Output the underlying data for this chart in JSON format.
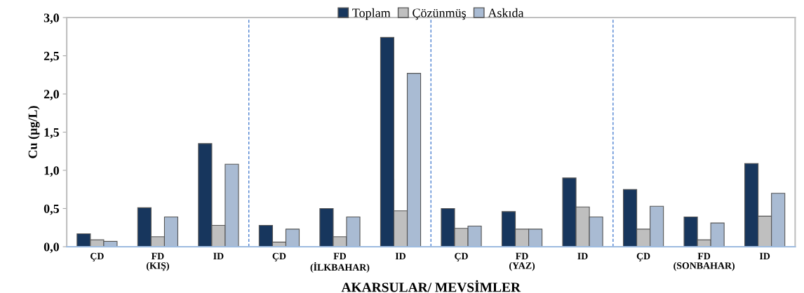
{
  "chart_data": {
    "type": "bar",
    "xlabel": "AKARSULAR/ MEVSİMLER",
    "ylabel": "Cu (µg/L)",
    "categories": [
      "ÇD",
      "FD\n(KIŞ)",
      "ID",
      "ÇD",
      "FD\n(İLKBAHAR)",
      "ID",
      "ÇD",
      "FD\n(YAZ)",
      "ID",
      "ÇD",
      "FD\n(SONBAHAR)",
      "ID"
    ],
    "series": [
      {
        "name": "Toplam",
        "color": "#17365d",
        "values": [
          0.17,
          0.51,
          1.35,
          0.28,
          0.5,
          2.74,
          0.5,
          0.46,
          0.9,
          0.75,
          0.39,
          1.09
        ]
      },
      {
        "name": "Çözünmüş",
        "color": "#bfbfbf",
        "values": [
          0.09,
          0.13,
          0.28,
          0.06,
          0.13,
          0.47,
          0.24,
          0.23,
          0.52,
          0.23,
          0.09,
          0.4
        ]
      },
      {
        "name": "Askıda",
        "color": "#a9bbd3",
        "values": [
          0.07,
          0.39,
          1.08,
          0.23,
          0.39,
          2.27,
          0.27,
          0.23,
          0.39,
          0.53,
          0.31,
          0.7
        ]
      }
    ],
    "ylim": [
      0,
      3.0
    ],
    "yticks": [
      {
        "value": 0,
        "label": "0,0"
      },
      {
        "value": 0.5,
        "label": "0,5"
      },
      {
        "value": 1.0,
        "label": "1,0"
      },
      {
        "value": 1.5,
        "label": "1,5"
      },
      {
        "value": 2.0,
        "label": "2,0"
      },
      {
        "value": 2.5,
        "label": "2,5"
      },
      {
        "value": 3.0,
        "label": "3,0"
      }
    ],
    "grid": false,
    "legend": "top"
  }
}
